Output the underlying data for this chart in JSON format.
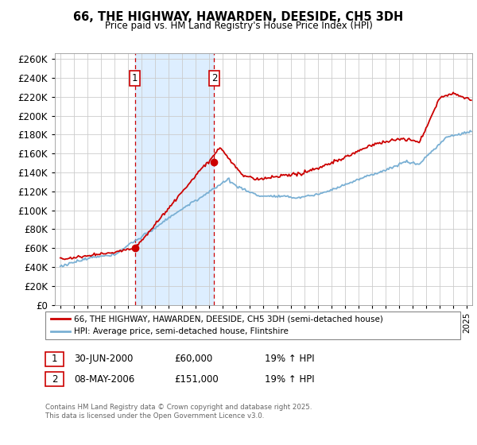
{
  "title": "66, THE HIGHWAY, HAWARDEN, DEESIDE, CH5 3DH",
  "subtitle": "Price paid vs. HM Land Registry's House Price Index (HPI)",
  "legend_line1": "66, THE HIGHWAY, HAWARDEN, DEESIDE, CH5 3DH (semi-detached house)",
  "legend_line2": "HPI: Average price, semi-detached house, Flintshire",
  "footer": "Contains HM Land Registry data © Crown copyright and database right 2025.\nThis data is licensed under the Open Government Licence v3.0.",
  "annotation1_label": "1",
  "annotation1_date": "30-JUN-2000",
  "annotation1_price": "£60,000",
  "annotation1_hpi": "19% ↑ HPI",
  "annotation2_label": "2",
  "annotation2_date": "08-MAY-2006",
  "annotation2_price": "£151,000",
  "annotation2_hpi": "19% ↑ HPI",
  "sale1_x": 2000.5,
  "sale1_y": 60000,
  "sale2_x": 2006.36,
  "sale2_y": 151000,
  "red_color": "#cc0000",
  "blue_color": "#7ab0d4",
  "shade_color": "#ddeeff",
  "grid_color": "#cccccc",
  "ylim": [
    0,
    266000
  ],
  "xlim_start": 1994.6,
  "xlim_end": 2025.4
}
